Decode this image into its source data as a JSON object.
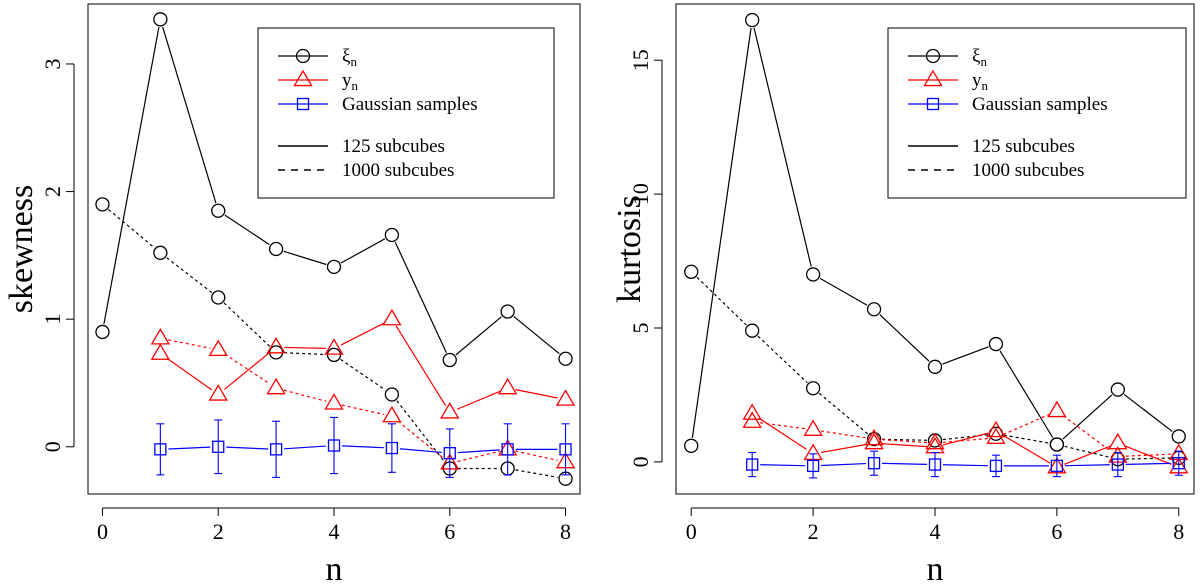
{
  "chart_data": [
    {
      "type": "line",
      "xlabel": "n",
      "ylabel": "skewness",
      "xlim": [
        -0.25,
        8.25
      ],
      "ylim": [
        -0.37,
        3.47
      ],
      "xticks": [
        0,
        2,
        4,
        6,
        8
      ],
      "yticks": [
        0,
        1,
        2,
        3
      ],
      "legend": {
        "position": "top-right",
        "entries": [
          {
            "name": "ξ",
            "sub": "n",
            "color": "#000000",
            "marker": "circle"
          },
          {
            "name": "y",
            "sub": "n",
            "color": "#ff0000",
            "marker": "triangle"
          },
          {
            "name": "Gaussian samples",
            "sub": "",
            "color": "#0000ff",
            "marker": "square"
          }
        ],
        "styles": [
          {
            "label": "125 subcubes",
            "dash": "solid"
          },
          {
            "label": "1000 subcubes",
            "dash": "dashed"
          }
        ]
      },
      "series": [
        {
          "name": "ξn 125 subcubes",
          "color": "#000000",
          "marker": "circle",
          "dash": "solid",
          "x": [
            0,
            1,
            2,
            3,
            4,
            5,
            6,
            7,
            8
          ],
          "values": [
            0.9,
            3.35,
            1.85,
            1.55,
            1.41,
            1.66,
            0.68,
            1.06,
            0.69
          ]
        },
        {
          "name": "ξn 1000 subcubes",
          "color": "#000000",
          "marker": "circle",
          "dash": "dashed",
          "x": [
            0,
            1,
            2,
            3,
            4,
            5,
            6,
            7,
            8
          ],
          "values": [
            1.9,
            1.52,
            1.17,
            0.74,
            0.72,
            0.41,
            -0.17,
            -0.17,
            -0.25
          ]
        },
        {
          "name": "yn 125 subcubes",
          "color": "#ff0000",
          "marker": "triangle",
          "dash": "solid",
          "x": [
            1,
            2,
            3,
            4,
            5,
            6,
            7,
            8
          ],
          "values": [
            0.73,
            0.41,
            0.78,
            0.77,
            1.0,
            0.27,
            0.46,
            0.37
          ]
        },
        {
          "name": "yn 1000 subcubes",
          "color": "#ff0000",
          "marker": "triangle",
          "dash": "dashed",
          "x": [
            1,
            2,
            3,
            4,
            5,
            6,
            7,
            8
          ],
          "values": [
            0.85,
            0.76,
            0.46,
            0.34,
            0.24,
            -0.13,
            -0.02,
            -0.12
          ]
        },
        {
          "name": "Gaussian samples",
          "color": "#0000ff",
          "marker": "square",
          "dash": "solid",
          "x": [
            1,
            2,
            3,
            4,
            5,
            6,
            7,
            8
          ],
          "values": [
            -0.02,
            0.0,
            -0.02,
            0.01,
            -0.01,
            -0.05,
            -0.02,
            -0.02
          ],
          "errors": [
            0.2,
            0.21,
            0.22,
            0.22,
            0.19,
            0.19,
            0.2,
            0.2
          ]
        }
      ]
    },
    {
      "type": "line",
      "xlabel": "n",
      "ylabel": "kurtosis",
      "xlim": [
        -0.25,
        8.25
      ],
      "ylim": [
        -1.2,
        17.1
      ],
      "xticks": [
        0,
        2,
        4,
        6,
        8
      ],
      "yticks": [
        0,
        5,
        10,
        15
      ],
      "legend": {
        "position": "top-right",
        "entries": [
          {
            "name": "ξ",
            "sub": "n",
            "color": "#000000",
            "marker": "circle"
          },
          {
            "name": "y",
            "sub": "n",
            "color": "#ff0000",
            "marker": "triangle"
          },
          {
            "name": "Gaussian samples",
            "sub": "",
            "color": "#0000ff",
            "marker": "square"
          }
        ],
        "styles": [
          {
            "label": "125 subcubes",
            "dash": "solid"
          },
          {
            "label": "1000 subcubes",
            "dash": "dashed"
          }
        ]
      },
      "series": [
        {
          "name": "ξn 125 subcubes",
          "color": "#000000",
          "marker": "circle",
          "dash": "solid",
          "x": [
            0,
            1,
            2,
            3,
            4,
            5,
            6,
            7,
            8
          ],
          "values": [
            0.6,
            16.5,
            7.0,
            5.7,
            3.55,
            4.4,
            0.65,
            2.7,
            0.95
          ]
        },
        {
          "name": "ξn 1000 subcubes",
          "color": "#000000",
          "marker": "circle",
          "dash": "dashed",
          "x": [
            0,
            1,
            2,
            3,
            4,
            5,
            6,
            7,
            8
          ],
          "values": [
            7.1,
            4.9,
            2.75,
            0.85,
            0.8,
            1.05,
            0.65,
            0.1,
            0.15
          ]
        },
        {
          "name": "yn 125 subcubes",
          "color": "#ff0000",
          "marker": "triangle",
          "dash": "solid",
          "x": [
            1,
            2,
            3,
            4,
            5,
            6,
            7,
            8
          ],
          "values": [
            1.8,
            0.3,
            0.7,
            0.55,
            1.15,
            -0.2,
            0.7,
            -0.2
          ]
        },
        {
          "name": "yn 1000 subcubes",
          "color": "#ff0000",
          "marker": "triangle",
          "dash": "dashed",
          "x": [
            1,
            2,
            3,
            4,
            5,
            6,
            7,
            8
          ],
          "values": [
            1.5,
            1.2,
            0.85,
            0.7,
            0.9,
            1.9,
            0.2,
            0.3
          ]
        },
        {
          "name": "Gaussian samples",
          "color": "#0000ff",
          "marker": "square",
          "dash": "solid",
          "x": [
            1,
            2,
            3,
            4,
            5,
            6,
            7,
            8
          ],
          "values": [
            -0.1,
            -0.15,
            -0.05,
            -0.1,
            -0.15,
            -0.15,
            -0.1,
            -0.05
          ],
          "errors": [
            0.45,
            0.45,
            0.45,
            0.45,
            0.4,
            0.4,
            0.45,
            0.45
          ]
        }
      ]
    }
  ]
}
